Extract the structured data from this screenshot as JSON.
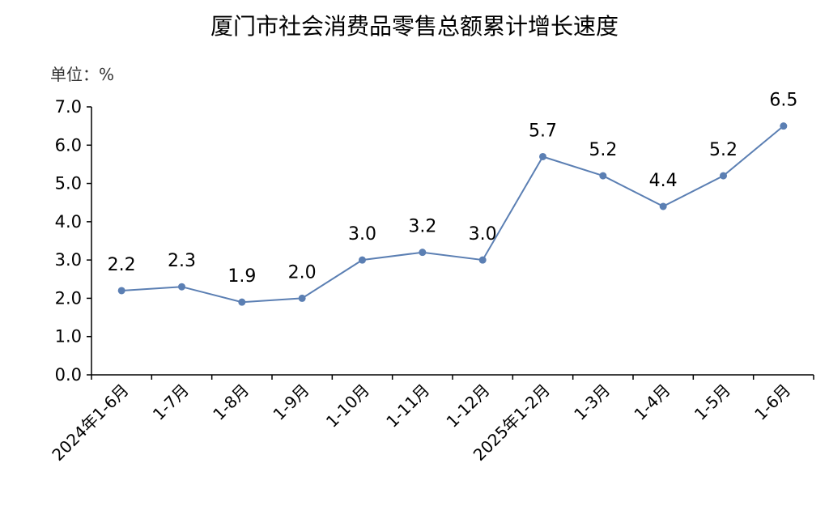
{
  "chart_data": {
    "type": "line",
    "title": "厦门市社会消费品零售总额累计增长速度",
    "unit_label": "单位：%",
    "categories": [
      "2024年1-6月",
      "1-7月",
      "1-8月",
      "1-9月",
      "1-10月",
      "1-11月",
      "1-12月",
      "2025年1-2月",
      "1-3月",
      "1-4月",
      "1-5月",
      "1-6月"
    ],
    "values": [
      2.2,
      2.3,
      1.9,
      2.0,
      3.0,
      3.2,
      3.0,
      5.7,
      5.2,
      4.4,
      5.2,
      6.5
    ],
    "value_labels": [
      "2.2",
      "2.3",
      "1.9",
      "2.0",
      "3.0",
      "3.2",
      "3.0",
      "5.7",
      "5.2",
      "4.4",
      "5.2",
      "6.5"
    ],
    "yticks": [
      "0.0",
      "1.0",
      "2.0",
      "3.0",
      "4.0",
      "5.0",
      "6.0",
      "7.0"
    ],
    "ylim": [
      0,
      7
    ],
    "grid": false,
    "legend": "none",
    "series_color": "#5b7fb3"
  }
}
